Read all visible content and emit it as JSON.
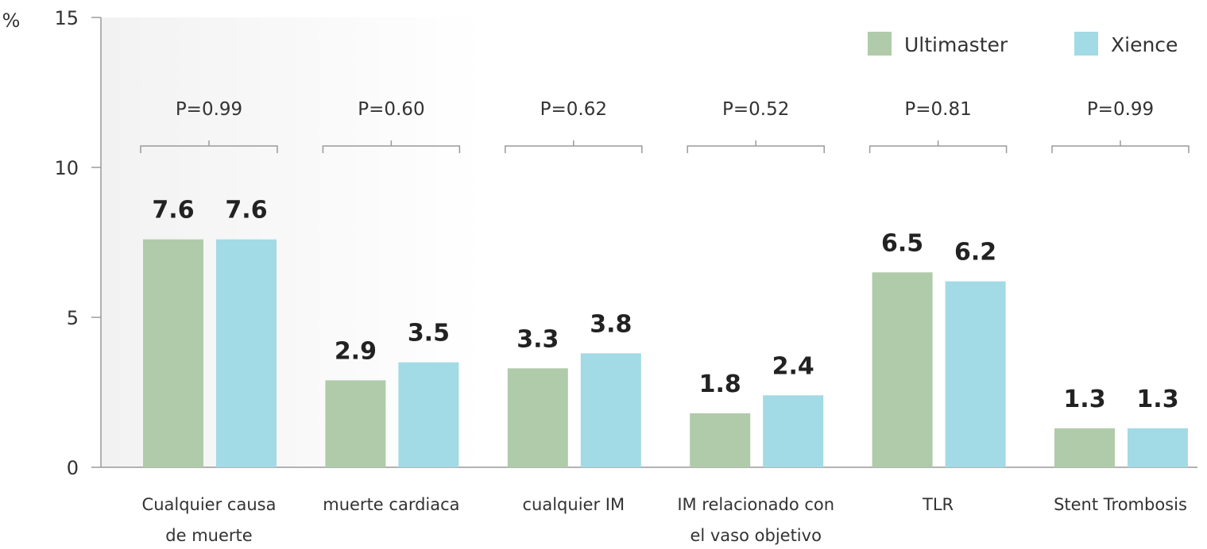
{
  "chart_data": {
    "type": "bar",
    "ylabel": "%",
    "ylim": [
      0,
      15
    ],
    "yticks": [
      0,
      5,
      10,
      15
    ],
    "grid": false,
    "legend_position": "top-right",
    "categories": [
      [
        "Cualquier causa",
        "de muerte"
      ],
      [
        "muerte cardiaca"
      ],
      [
        "cualquier IM"
      ],
      [
        "IM relacionado con",
        "el vaso objetivo"
      ],
      [
        "TLR"
      ],
      [
        "Stent Trombosis"
      ]
    ],
    "series": [
      {
        "name": "Ultimaster",
        "color": "#b0cbaa",
        "values": [
          7.6,
          2.9,
          3.3,
          1.8,
          6.5,
          1.3
        ]
      },
      {
        "name": "Xience",
        "color": "#a2dae5",
        "values": [
          7.6,
          3.5,
          3.8,
          2.4,
          6.2,
          1.3
        ]
      }
    ],
    "annotations": [
      "P=0.99",
      "P=0.60",
      "P=0.62",
      "P=0.52",
      "P=0.81",
      "P=0.99"
    ]
  }
}
